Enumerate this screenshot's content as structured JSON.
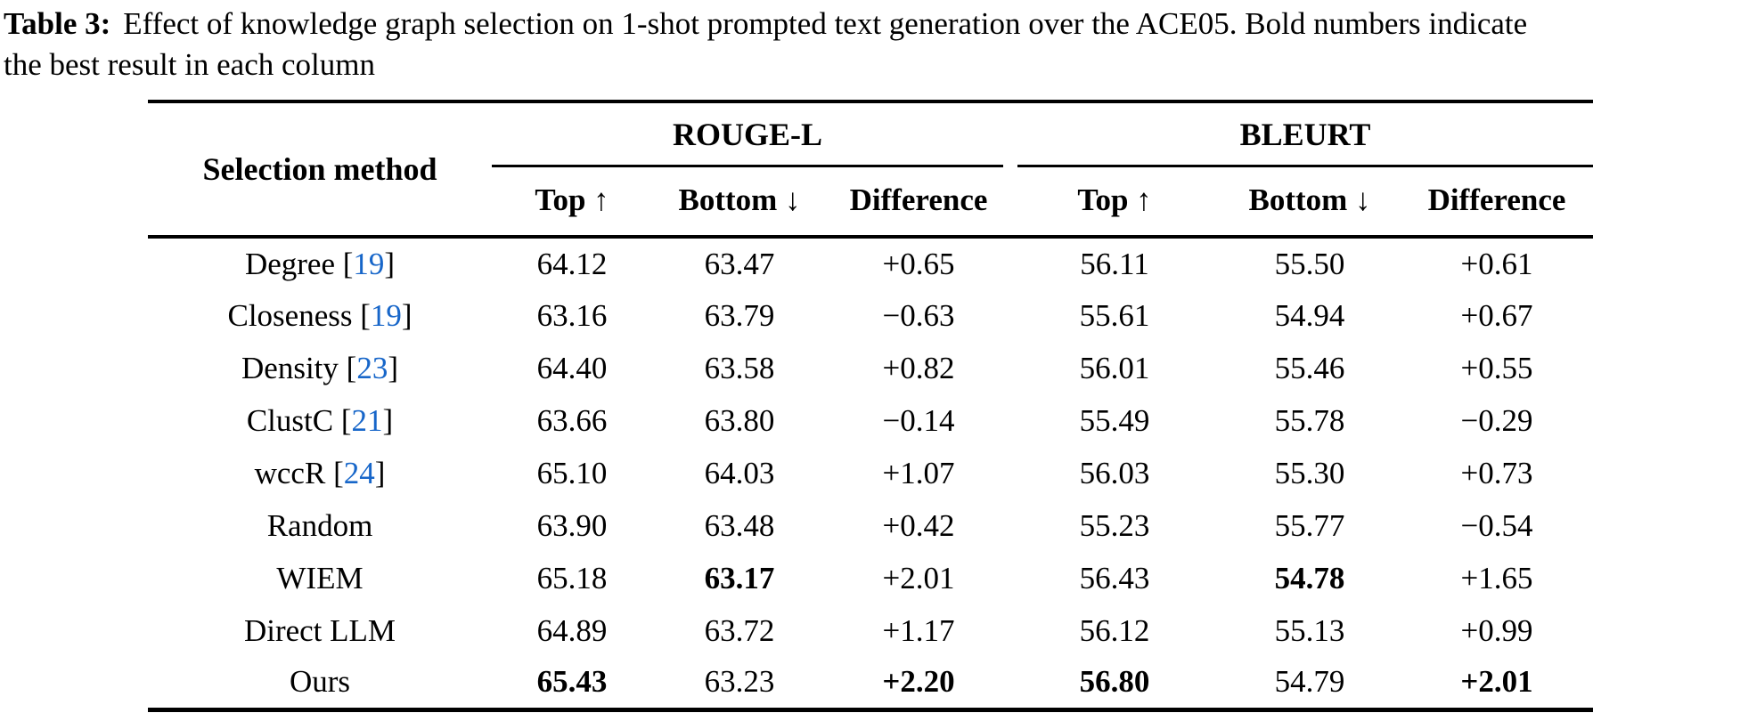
{
  "caption": {
    "label": "Table 3:",
    "lines": [
      "Effect of knowledge graph selection on 1-shot prompted text generation over the ACE05. Bold numbers indicate",
      "the best result in each column"
    ]
  },
  "colors": {
    "text": "#000000",
    "rule": "#000000",
    "citation_link": "#1766C9"
  },
  "table": {
    "row_header": "Selection method",
    "groups": [
      {
        "label": "ROUGE-L",
        "columns": [
          "Top ↑",
          "Bottom ↓",
          "Difference"
        ]
      },
      {
        "label": "BLEURT",
        "columns": [
          "Top ↑",
          "Bottom ↓",
          "Difference"
        ]
      }
    ],
    "rows": [
      {
        "method": "Degree",
        "citation": "19",
        "values": [
          "64.12",
          "63.47",
          "+0.65",
          "56.11",
          "55.50",
          "+0.61"
        ],
        "bold": []
      },
      {
        "method": "Closeness",
        "citation": "19",
        "values": [
          "63.16",
          "63.79",
          "−0.63",
          "55.61",
          "54.94",
          "+0.67"
        ],
        "bold": []
      },
      {
        "method": "Density",
        "citation": "23",
        "values": [
          "64.40",
          "63.58",
          "+0.82",
          "56.01",
          "55.46",
          "+0.55"
        ],
        "bold": []
      },
      {
        "method": "ClustC",
        "citation": "21",
        "values": [
          "63.66",
          "63.80",
          "−0.14",
          "55.49",
          "55.78",
          "−0.29"
        ],
        "bold": []
      },
      {
        "method": "wccR",
        "citation": "24",
        "values": [
          "65.10",
          "64.03",
          "+1.07",
          "56.03",
          "55.30",
          "+0.73"
        ],
        "bold": []
      },
      {
        "method": "Random",
        "citation": null,
        "values": [
          "63.90",
          "63.48",
          "+0.42",
          "55.23",
          "55.77",
          "−0.54"
        ],
        "bold": []
      },
      {
        "method": "WIEM",
        "citation": null,
        "values": [
          "65.18",
          "63.17",
          "+2.01",
          "56.43",
          "54.78",
          "+1.65"
        ],
        "bold": [
          1,
          4
        ]
      },
      {
        "method": "Direct LLM",
        "citation": null,
        "values": [
          "64.89",
          "63.72",
          "+1.17",
          "56.12",
          "55.13",
          "+0.99"
        ],
        "bold": []
      },
      {
        "method": "Ours",
        "citation": null,
        "values": [
          "65.43",
          "63.23",
          "+2.20",
          "56.80",
          "54.79",
          "+2.01"
        ],
        "bold": [
          0,
          2,
          3,
          5
        ]
      }
    ]
  }
}
